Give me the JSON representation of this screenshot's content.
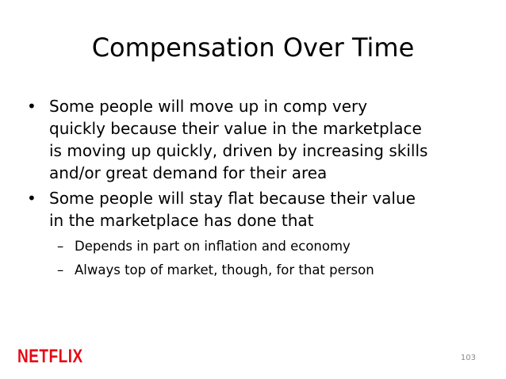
{
  "slide": {
    "title": "Compensation Over Time",
    "bullets": [
      {
        "lines": [
          "Some people will move up in comp very",
          "quickly because their value in the marketplace",
          "is moving up quickly, driven by increasing skills",
          "and/or great demand for their area"
        ]
      },
      {
        "lines": [
          "Some people will stay flat because their value",
          "in the marketplace has done that"
        ]
      }
    ],
    "sub_bullets": [
      "Depends in part on inflation and economy",
      "Always top of market, though, for that person"
    ],
    "bullet_glyph": "•",
    "dash_glyph": "–",
    "logo_text": "NETFLIX",
    "page_number": "103"
  },
  "colors": {
    "brand": "#e50914",
    "text": "#000000",
    "page_number": "#8a8a8a"
  }
}
